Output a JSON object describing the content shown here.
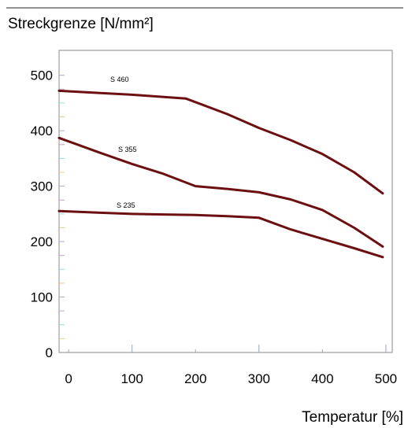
{
  "chart_data": {
    "type": "line",
    "title": "",
    "ylabel": "Streckgrenze [N/mm²]",
    "xlabel": "Temperatur [%]",
    "xlim": [
      -15,
      510
    ],
    "ylim": [
      0,
      545
    ],
    "x_ticks": [
      0,
      100,
      200,
      300,
      400,
      500
    ],
    "y_ticks": [
      0,
      100,
      200,
      300,
      400,
      500
    ],
    "grid": false,
    "series": [
      {
        "name": "S 460",
        "color": "#6b0f10",
        "x": [
          -15,
          50,
          100,
          150,
          185,
          250,
          300,
          350,
          400,
          450,
          495
        ],
        "y": [
          472,
          468,
          465,
          461,
          458,
          430,
          405,
          383,
          358,
          325,
          287
        ]
      },
      {
        "name": "S 355",
        "color": "#6b0f10",
        "x": [
          -15,
          50,
          100,
          150,
          200,
          250,
          300,
          350,
          400,
          450,
          495
        ],
        "y": [
          387,
          360,
          340,
          322,
          300,
          295,
          289,
          276,
          257,
          225,
          191
        ]
      },
      {
        "name": "S 235",
        "color": "#6b0f10",
        "x": [
          -15,
          50,
          100,
          150,
          200,
          250,
          300,
          350,
          400,
          450,
          495
        ],
        "y": [
          255,
          252,
          250,
          249,
          248,
          246,
          243,
          222,
          205,
          188,
          172
        ]
      }
    ]
  }
}
